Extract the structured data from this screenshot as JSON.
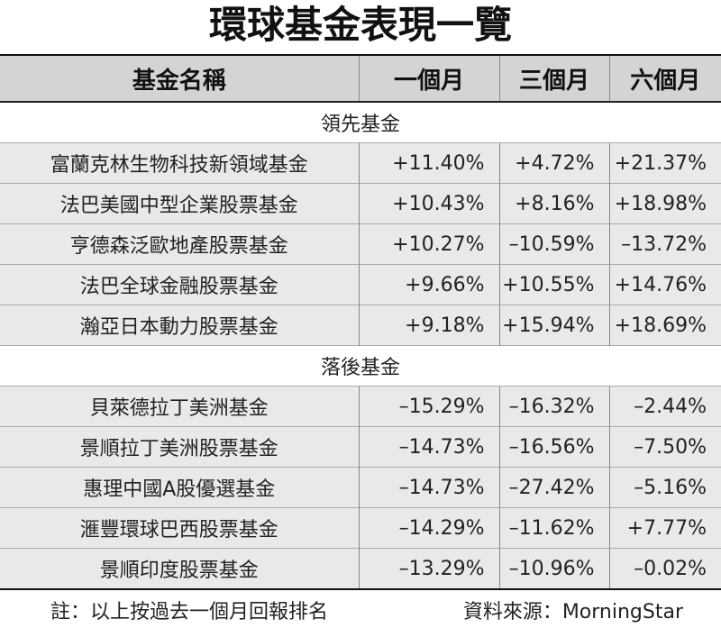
{
  "title": "環球基金表現一覽",
  "headers": [
    "基金名稱",
    "一個月",
    "三個月",
    "六個月"
  ],
  "sections": [
    {
      "label": "領先基金",
      "rows": [
        {
          "name": "富蘭克林生物科技新領域基金",
          "m1": "+11.40%",
          "m3": "+4.72%",
          "m6": "+21.37%"
        },
        {
          "name": "法巴美國中型企業股票基金",
          "m1": "+10.43%",
          "m3": "+8.16%",
          "m6": "+18.98%"
        },
        {
          "name": "亨德森泛歐地產股票基金",
          "m1": "+10.27%",
          "m3": "–10.59%",
          "m6": "–13.72%"
        },
        {
          "name": "法巴全球金融股票基金",
          "m1": "+9.66%",
          "m3": "+10.55%",
          "m6": "+14.76%"
        },
        {
          "name": "瀚亞日本動力股票基金",
          "m1": "+9.18%",
          "m3": "+15.94%",
          "m6": "+18.69%"
        }
      ]
    },
    {
      "label": "落後基金",
      "rows": [
        {
          "name": "貝萊德拉丁美洲基金",
          "m1": "–15.29%",
          "m3": "–16.32%",
          "m6": "–2.44%"
        },
        {
          "name": "景順拉丁美洲股票基金",
          "m1": "–14.73%",
          "m3": "–16.56%",
          "m6": "–7.50%"
        },
        {
          "name": "惠理中國A股優選基金",
          "m1": "–14.73%",
          "m3": "–27.42%",
          "m6": "–5.16%"
        },
        {
          "name": "滙豐環球巴西股票基金",
          "m1": "–14.29%",
          "m3": "–11.62%",
          "m6": "+7.77%"
        },
        {
          "name": "景順印度股票基金",
          "m1": "–13.29%",
          "m3": "–10.96%",
          "m6": "–0.02%"
        }
      ]
    }
  ],
  "footer": {
    "note": "註：以上按過去一個月回報排名",
    "source": "資料來源：MorningStar"
  },
  "colors": {
    "header_bg": "#d4d4d4",
    "row_bg": "#e9e9e9",
    "rule": "#111111"
  }
}
